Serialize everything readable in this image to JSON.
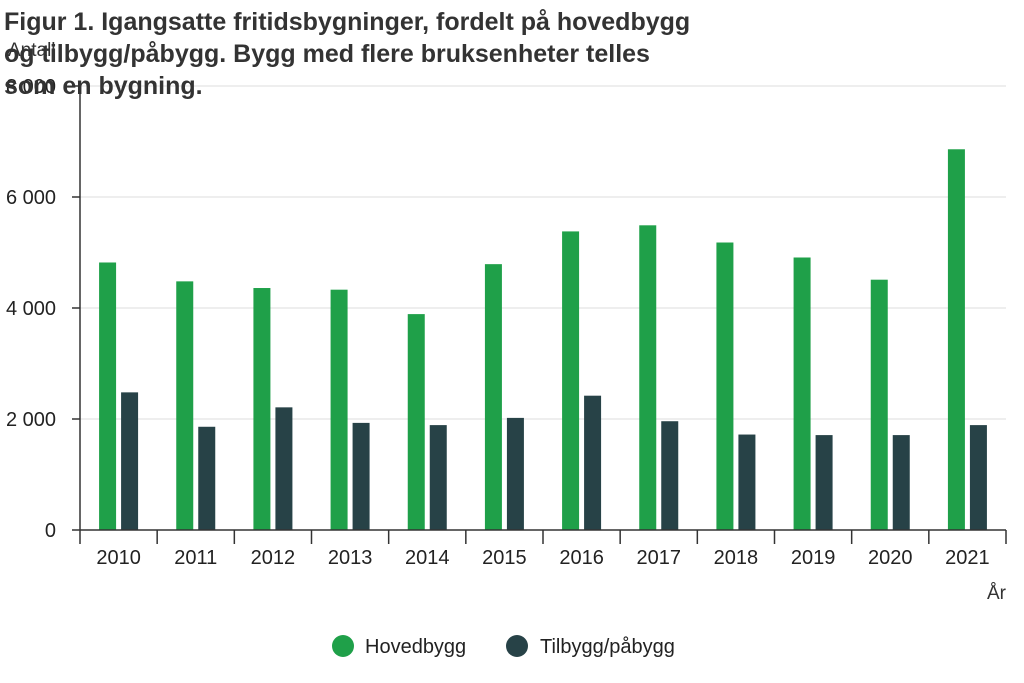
{
  "chart_data": {
    "type": "bar",
    "title": "Figur 1. Igangsatte fritidsbygninger, fordelt på hovedbygg og tilbygg/påbygg. Bygg med flere bruksenheter telles som en bygning.",
    "title_lines": [
      "Figur 1. Igangsatte fritidsbygninger, fordelt på hovedbygg",
      "og tilbygg/påbygg. Bygg med flere bruksenheter telles",
      "som en bygning."
    ],
    "ylabel": "Antall",
    "xlabel": "År",
    "ylim": [
      0,
      8000
    ],
    "yticks": [
      0,
      2000,
      4000,
      6000,
      8000
    ],
    "ytick_labels": [
      "0",
      "2 000",
      "4 000",
      "6 000",
      "8 000"
    ],
    "grid": true,
    "legend_position": "bottom",
    "categories": [
      "2010",
      "2011",
      "2012",
      "2013",
      "2014",
      "2015",
      "2016",
      "2017",
      "2018",
      "2019",
      "2020",
      "2021"
    ],
    "series": [
      {
        "name": "Hovedbygg",
        "color": "#1fa049",
        "values": [
          4820,
          4480,
          4360,
          4330,
          3890,
          4790,
          5380,
          5490,
          5180,
          4910,
          4510,
          6860
        ]
      },
      {
        "name": "Tilbygg/påbygg",
        "color": "#274247",
        "values": [
          2480,
          1860,
          2210,
          1930,
          1890,
          2020,
          2420,
          1960,
          1720,
          1710,
          1710,
          1890
        ]
      }
    ]
  }
}
